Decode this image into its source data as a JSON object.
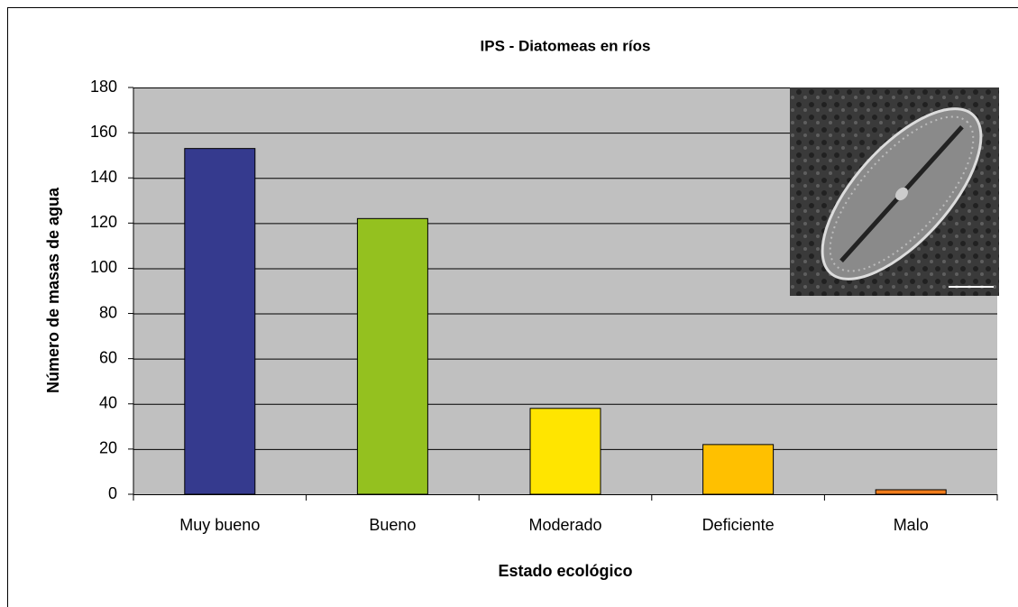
{
  "chart_data": {
    "type": "bar",
    "title": "IPS - Diatomeas en ríos",
    "x_label": "Estado ecológico",
    "y_label": "Número de masas de agua",
    "categories": [
      "Muy bueno",
      "Bueno",
      "Moderado",
      "Deficiente",
      "Malo"
    ],
    "values": [
      153,
      122,
      38,
      22,
      2
    ],
    "colors": [
      "#353a8e",
      "#94c11f",
      "#ffe500",
      "#ffc000",
      "#f07c1b"
    ],
    "ylim": [
      0,
      180
    ],
    "yticks": [
      0,
      20,
      40,
      60,
      80,
      100,
      120,
      140,
      160,
      180
    ],
    "grid": true
  }
}
